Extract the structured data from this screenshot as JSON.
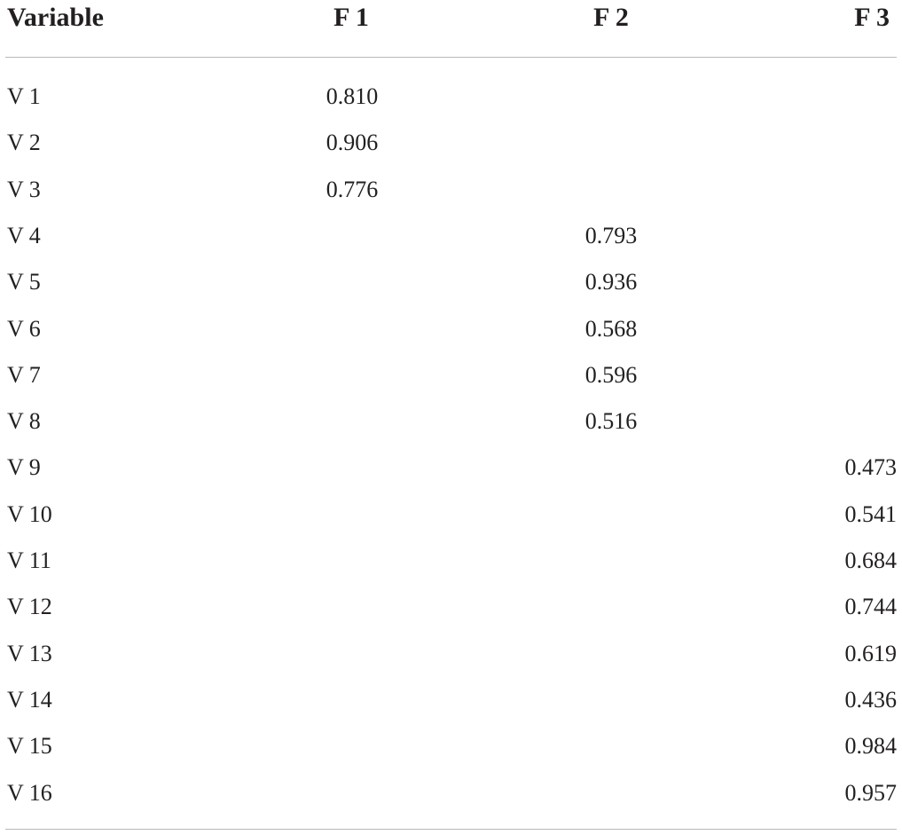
{
  "table": {
    "header": [
      "Variable",
      "F 1",
      "F 2",
      "F 3"
    ],
    "rows": [
      [
        "V 1",
        "0.810",
        null,
        null
      ],
      [
        "V 2",
        "0.906",
        null,
        null
      ],
      [
        "V 3",
        "0.776",
        null,
        null
      ],
      [
        "V 4",
        null,
        "0.793",
        null
      ],
      [
        "V 5",
        null,
        "0.936",
        null
      ],
      [
        "V 6",
        null,
        "0.568",
        null
      ],
      [
        "V 7",
        null,
        "0.596",
        null
      ],
      [
        "V 8",
        null,
        "0.516",
        null
      ],
      [
        "V 9",
        null,
        null,
        "0.473"
      ],
      [
        "V 10",
        null,
        null,
        "0.541"
      ],
      [
        "V 11",
        null,
        null,
        "0.684"
      ],
      [
        "V 12",
        null,
        null,
        "0.744"
      ],
      [
        "V 13",
        null,
        null,
        "0.619"
      ],
      [
        "V 14",
        null,
        null,
        "0.436"
      ],
      [
        "V 15",
        null,
        null,
        "0.984"
      ],
      [
        "V 16",
        null,
        null,
        "0.957"
      ]
    ]
  }
}
